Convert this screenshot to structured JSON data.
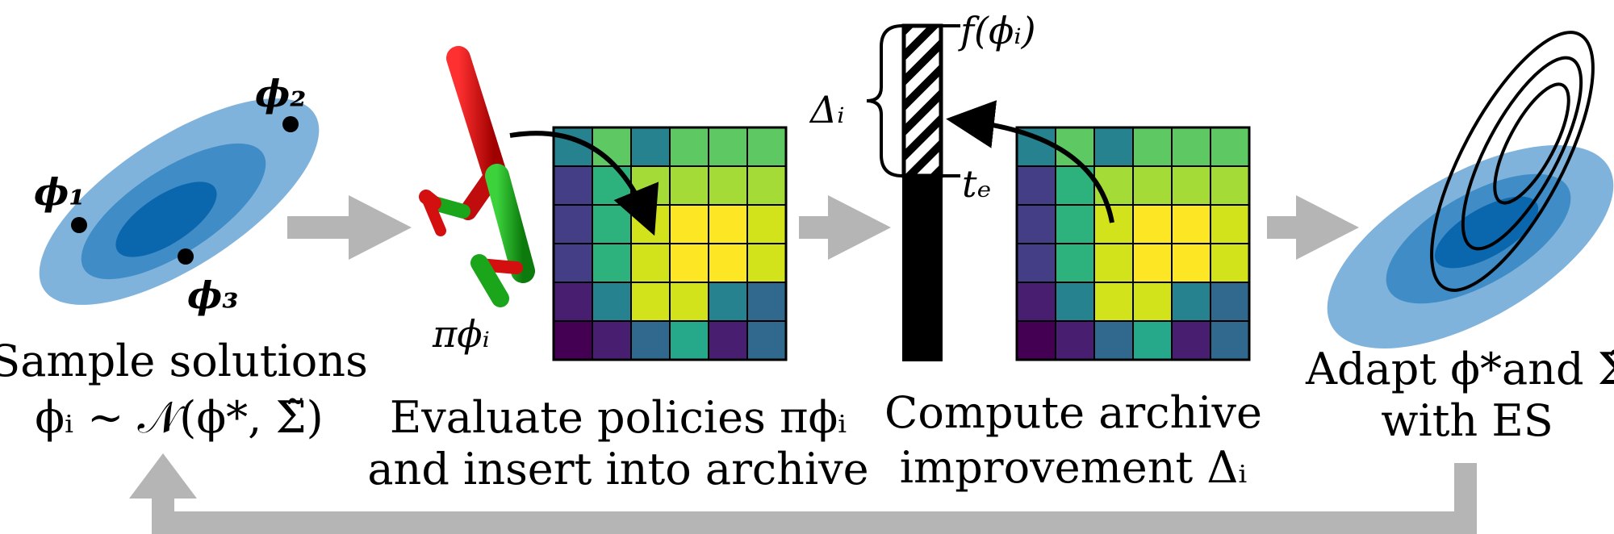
{
  "captions": {
    "sample": [
      "Sample solutions",
      "ϕᵢ ∼ 𝒩(ϕ*, Σ̃)"
    ],
    "evaluate": [
      "Evaluate policies πϕᵢ",
      "and insert into archive"
    ],
    "compute": [
      "Compute archive",
      "improvement Δᵢ"
    ],
    "adapt": [
      "Adapt ϕ*and Σ̃",
      "with ES"
    ]
  },
  "labels": {
    "phi1": "ϕ₁",
    "phi2": "ϕ₂",
    "phi3": "ϕ₃",
    "pi": "πϕᵢ",
    "f_phi": "f(ϕᵢ)",
    "t_e": "tₑ",
    "delta": "Δᵢ"
  },
  "archive_before": [
    [
      "#26828e",
      "#5ec962",
      "#26828e",
      "#5ec962",
      "#5ec962",
      "#5ec962"
    ],
    [
      "#433e85",
      "#2db27d",
      "#a5db36",
      "#a5db36",
      "#a5db36",
      "#a5db36"
    ],
    [
      "#433e85",
      "#2db27d",
      "#d2e21b",
      "#fde725",
      "#fde725",
      "#d2e21b"
    ],
    [
      "#433e85",
      "#2db27d",
      "#d2e21b",
      "#fde725",
      "#fde725",
      "#d2e21b"
    ],
    [
      "#481f70",
      "#26828e",
      "#d2e21b",
      "#d2e21b",
      "#26828e",
      "#31688e"
    ],
    [
      "#440154",
      "#481f70",
      "#31688e",
      "#26a98b",
      "#481f70",
      "#31688e"
    ]
  ],
  "archive_after": [
    [
      "#26828e",
      "#5ec962",
      "#26828e",
      "#5ec962",
      "#5ec962",
      "#5ec962"
    ],
    [
      "#433e85",
      "#2db27d",
      "#a5db36",
      "#a5db36",
      "#a5db36",
      "#a5db36"
    ],
    [
      "#433e85",
      "#2db27d",
      "#d2e21b",
      "#fde725",
      "#fde725",
      "#d2e21b"
    ],
    [
      "#433e85",
      "#2db27d",
      "#d2e21b",
      "#fde725",
      "#fde725",
      "#d2e21b"
    ],
    [
      "#481f70",
      "#26828e",
      "#d2e21b",
      "#d2e21b",
      "#26828e",
      "#31688e"
    ],
    [
      "#440154",
      "#481f70",
      "#31688e",
      "#26a98b",
      "#481f70",
      "#31688e"
    ]
  ],
  "colors": {
    "gaussian_light": "#7fb3dc",
    "gaussian_mid": "#3f8cc6",
    "gaussian_dark": "#0a67ad",
    "flow_arrow": "#b5b5b5",
    "robot_red": "#d40f0f",
    "robot_green": "#1aa51a"
  }
}
